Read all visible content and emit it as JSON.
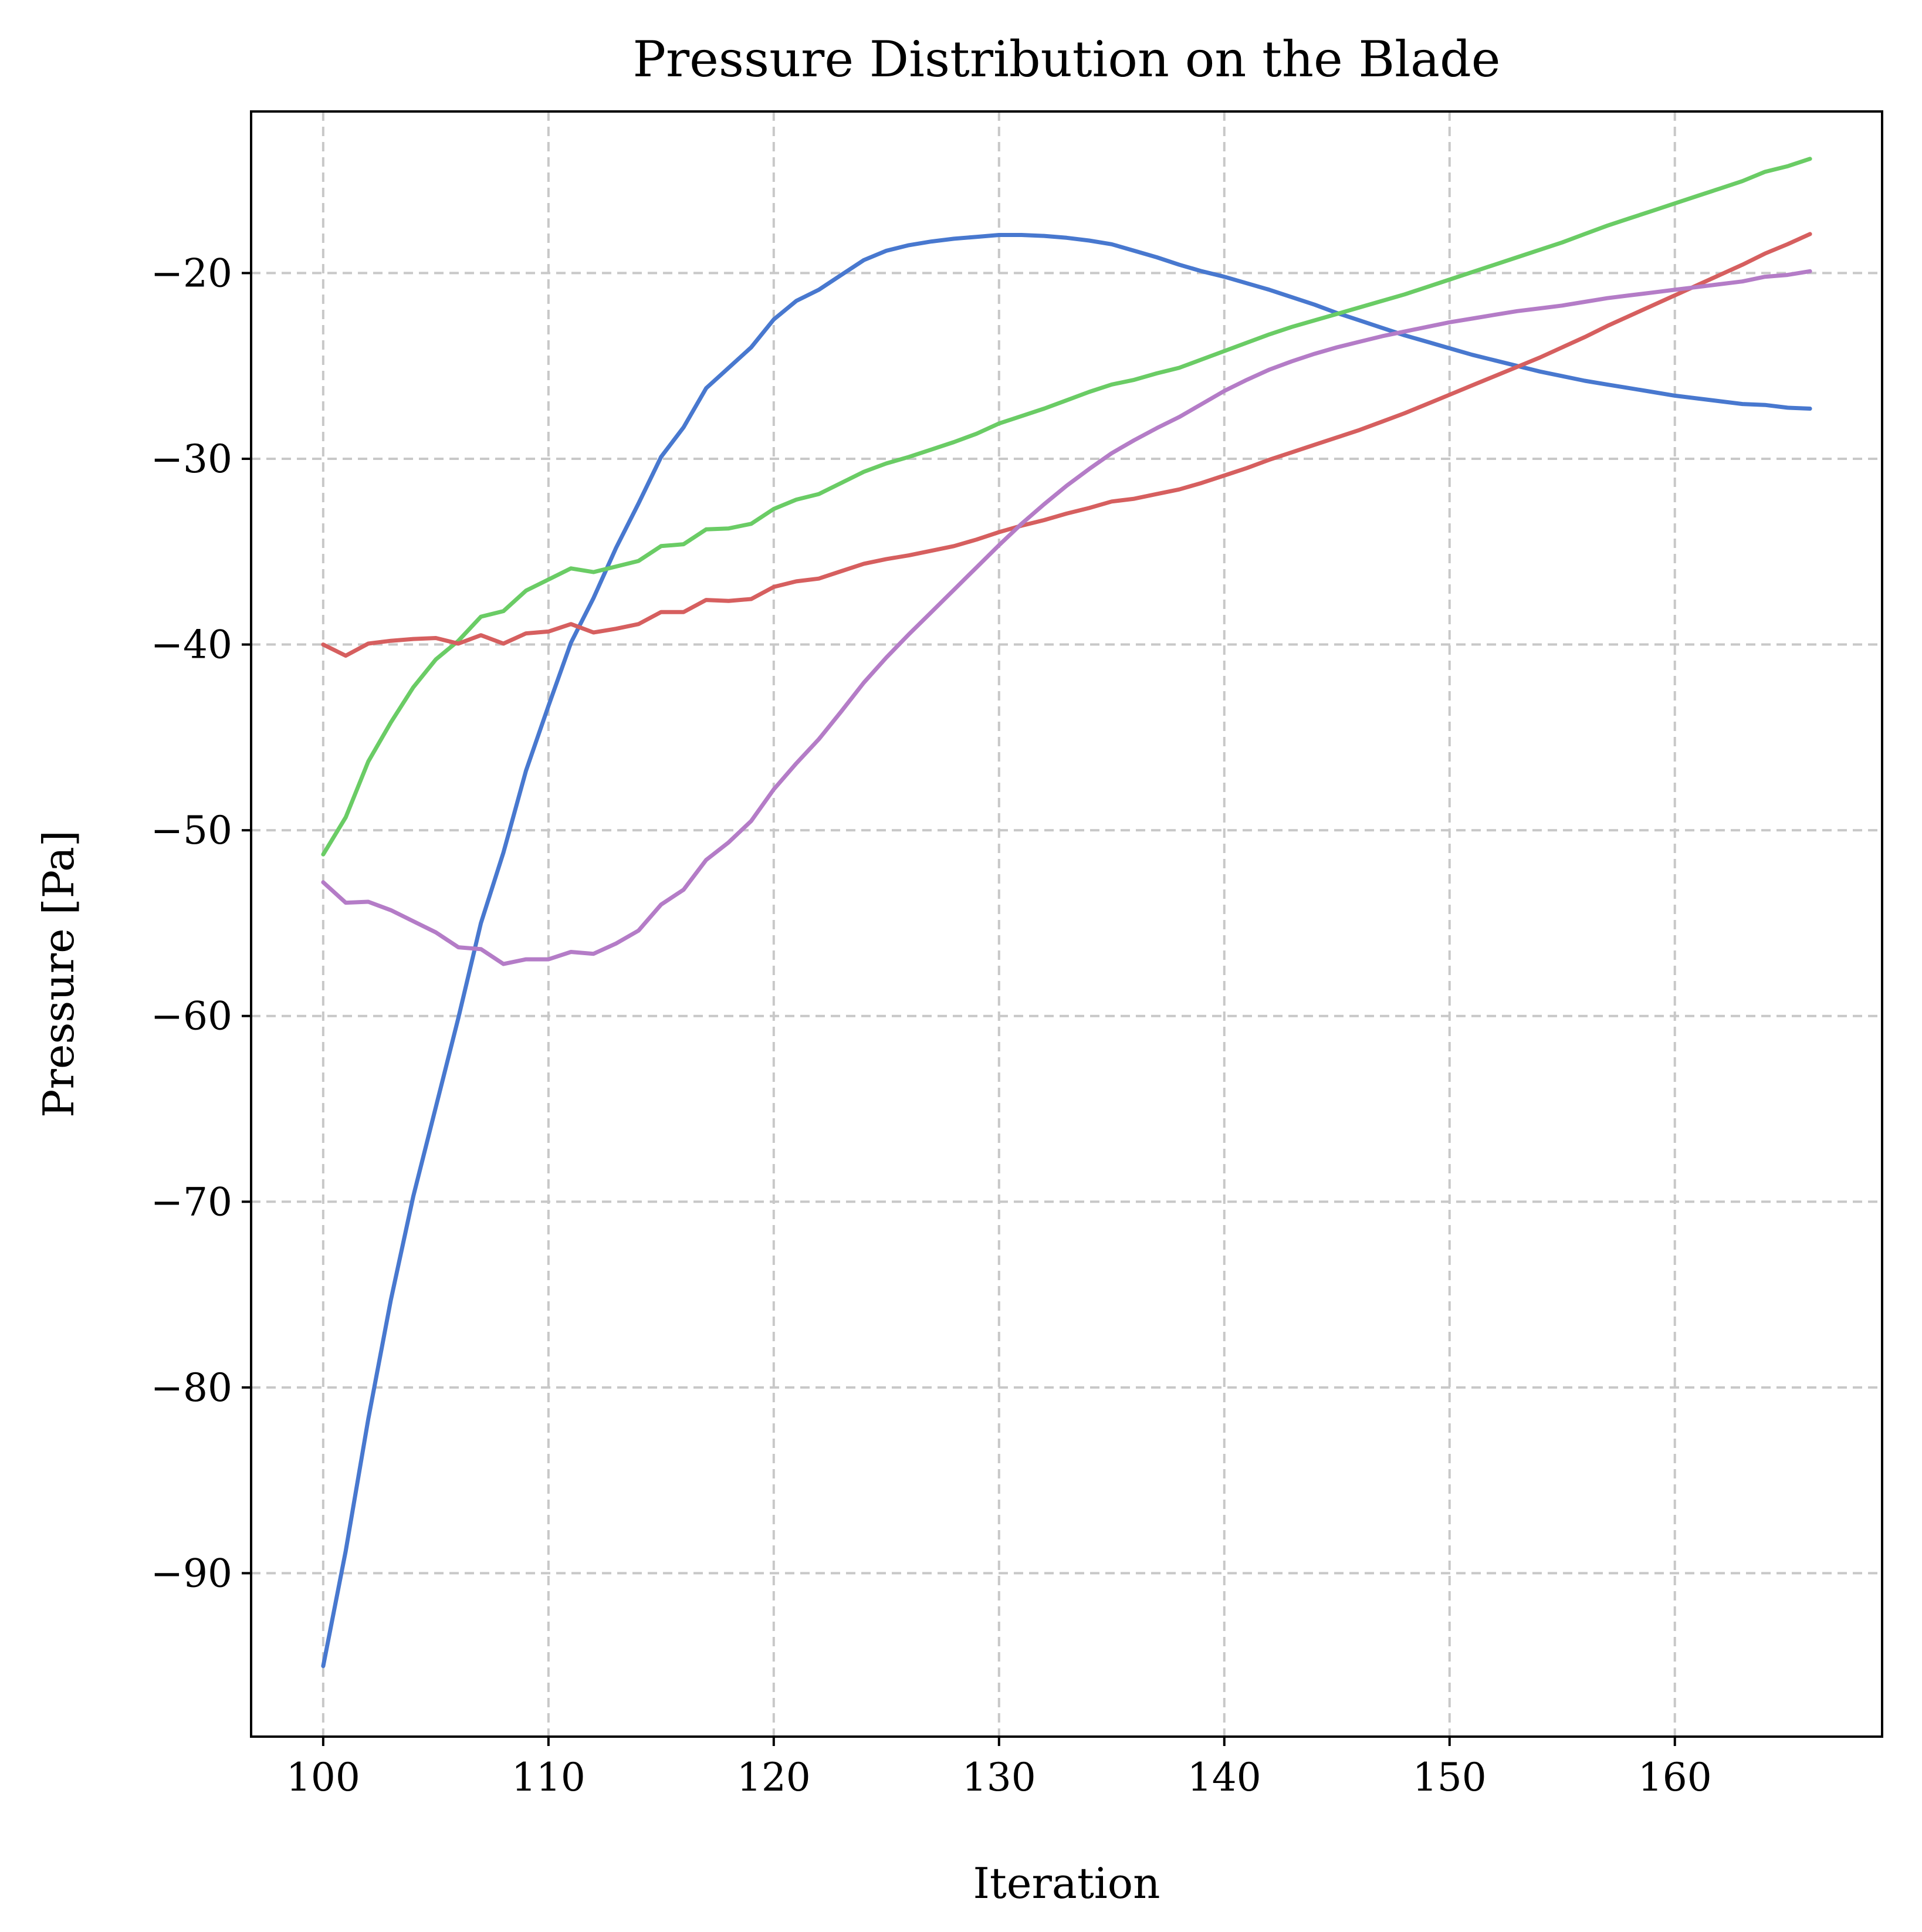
{
  "chart_data": {
    "type": "line",
    "title": "Pressure Distribution on the Blade",
    "xlabel": "Iteration",
    "ylabel": "Pressure [Pa]",
    "xlim": [
      96.8,
      169.2
    ],
    "ylim": [
      -98.8,
      -11.3
    ],
    "xticks": [
      100,
      110,
      120,
      130,
      140,
      150,
      160
    ],
    "yticks": [
      -90,
      -80,
      -70,
      -60,
      -50,
      -40,
      -30,
      -20
    ],
    "xtick_labels": [
      "100",
      "110",
      "120",
      "130",
      "140",
      "150",
      "160"
    ],
    "ytick_labels": [
      "−90",
      "−80",
      "−70",
      "−60",
      "−50",
      "−40",
      "−30",
      "−20"
    ],
    "grid": true,
    "x": [
      100,
      101,
      102,
      103,
      104,
      105,
      106,
      107,
      108,
      109,
      110,
      111,
      112,
      113,
      114,
      115,
      116,
      117,
      118,
      119,
      120,
      121,
      122,
      123,
      124,
      125,
      126,
      127,
      128,
      129,
      130,
      131,
      132,
      133,
      134,
      135,
      136,
      137,
      138,
      139,
      140,
      141,
      142,
      143,
      144,
      145,
      146,
      147,
      148,
      149,
      150,
      151,
      152,
      153,
      154,
      155,
      156,
      157,
      158,
      159,
      160,
      161,
      162,
      163,
      164,
      165,
      166
    ],
    "series": [
      {
        "color": "#4878CF",
        "values": [
          -95.0,
          -88.8,
          -81.7,
          -75.3,
          -69.7,
          -64.9,
          -60.1,
          -55.0,
          -51.2,
          -46.8,
          -43.3,
          -39.9,
          -37.5,
          -34.8,
          -32.4,
          -29.9,
          -28.3,
          -26.2,
          -25.1,
          -24.0,
          -22.5,
          -21.5,
          -20.9,
          -20.1,
          -19.3,
          -18.8,
          -18.5,
          -18.3,
          -18.15,
          -18.05,
          -17.95,
          -17.95,
          -18.0,
          -18.1,
          -18.25,
          -18.45,
          -18.8,
          -19.15,
          -19.55,
          -19.9,
          -20.2,
          -20.55,
          -20.9,
          -21.3,
          -21.7,
          -22.15,
          -22.55,
          -22.95,
          -23.35,
          -23.7,
          -24.05,
          -24.4,
          -24.7,
          -25.0,
          -25.3,
          -25.55,
          -25.8,
          -26.0,
          -26.2,
          -26.4,
          -26.6,
          -26.75,
          -26.9,
          -27.05,
          -27.1,
          -27.25,
          -27.3
        ]
      },
      {
        "color": "#6ACC65",
        "values": [
          -51.3,
          -49.3,
          -46.3,
          -44.2,
          -42.3,
          -40.8,
          -39.8,
          -38.5,
          -38.2,
          -37.1,
          -36.5,
          -35.9,
          -36.1,
          -35.8,
          -35.5,
          -34.7,
          -34.6,
          -33.8,
          -33.75,
          -33.5,
          -32.7,
          -32.2,
          -31.9,
          -31.3,
          -30.7,
          -30.25,
          -29.9,
          -29.5,
          -29.1,
          -28.65,
          -28.1,
          -27.7,
          -27.3,
          -26.85,
          -26.4,
          -26.0,
          -25.75,
          -25.4,
          -25.1,
          -24.65,
          -24.2,
          -23.75,
          -23.3,
          -22.9,
          -22.55,
          -22.2,
          -21.85,
          -21.5,
          -21.15,
          -20.75,
          -20.35,
          -19.95,
          -19.55,
          -19.15,
          -18.75,
          -18.35,
          -17.9,
          -17.45,
          -17.05,
          -16.65,
          -16.25,
          -15.85,
          -15.45,
          -15.05,
          -14.55,
          -14.25,
          -13.85
        ]
      },
      {
        "color": "#D65F5F",
        "values": [
          -40.0,
          -40.6,
          -39.95,
          -39.8,
          -39.7,
          -39.65,
          -39.95,
          -39.5,
          -39.95,
          -39.4,
          -39.3,
          -38.9,
          -39.35,
          -39.15,
          -38.9,
          -38.25,
          -38.25,
          -37.6,
          -37.65,
          -37.55,
          -36.9,
          -36.6,
          -36.45,
          -36.05,
          -35.65,
          -35.4,
          -35.2,
          -34.95,
          -34.7,
          -34.35,
          -33.95,
          -33.6,
          -33.3,
          -32.95,
          -32.65,
          -32.3,
          -32.15,
          -31.9,
          -31.65,
          -31.3,
          -30.9,
          -30.5,
          -30.05,
          -29.65,
          -29.25,
          -28.85,
          -28.45,
          -28.0,
          -27.55,
          -27.05,
          -26.55,
          -26.05,
          -25.55,
          -25.05,
          -24.55,
          -24.0,
          -23.45,
          -22.85,
          -22.3,
          -21.75,
          -21.2,
          -20.65,
          -20.1,
          -19.55,
          -18.95,
          -18.45,
          -17.9
        ]
      },
      {
        "color": "#B47CC7",
        "values": [
          -52.8,
          -53.9,
          -53.85,
          -54.3,
          -54.9,
          -55.5,
          -56.3,
          -56.4,
          -57.2,
          -56.95,
          -56.95,
          -56.55,
          -56.65,
          -56.1,
          -55.4,
          -54.0,
          -53.2,
          -51.6,
          -50.65,
          -49.5,
          -47.8,
          -46.4,
          -45.1,
          -43.6,
          -42.05,
          -40.7,
          -39.45,
          -38.25,
          -37.05,
          -35.85,
          -34.65,
          -33.5,
          -32.45,
          -31.45,
          -30.55,
          -29.7,
          -29.0,
          -28.35,
          -27.75,
          -27.05,
          -26.35,
          -25.75,
          -25.2,
          -24.75,
          -24.35,
          -24.0,
          -23.7,
          -23.4,
          -23.15,
          -22.9,
          -22.65,
          -22.45,
          -22.25,
          -22.05,
          -21.9,
          -21.75,
          -21.55,
          -21.35,
          -21.2,
          -21.05,
          -20.9,
          -20.75,
          -20.6,
          -20.45,
          -20.2,
          -20.1,
          -19.9
        ]
      }
    ]
  }
}
